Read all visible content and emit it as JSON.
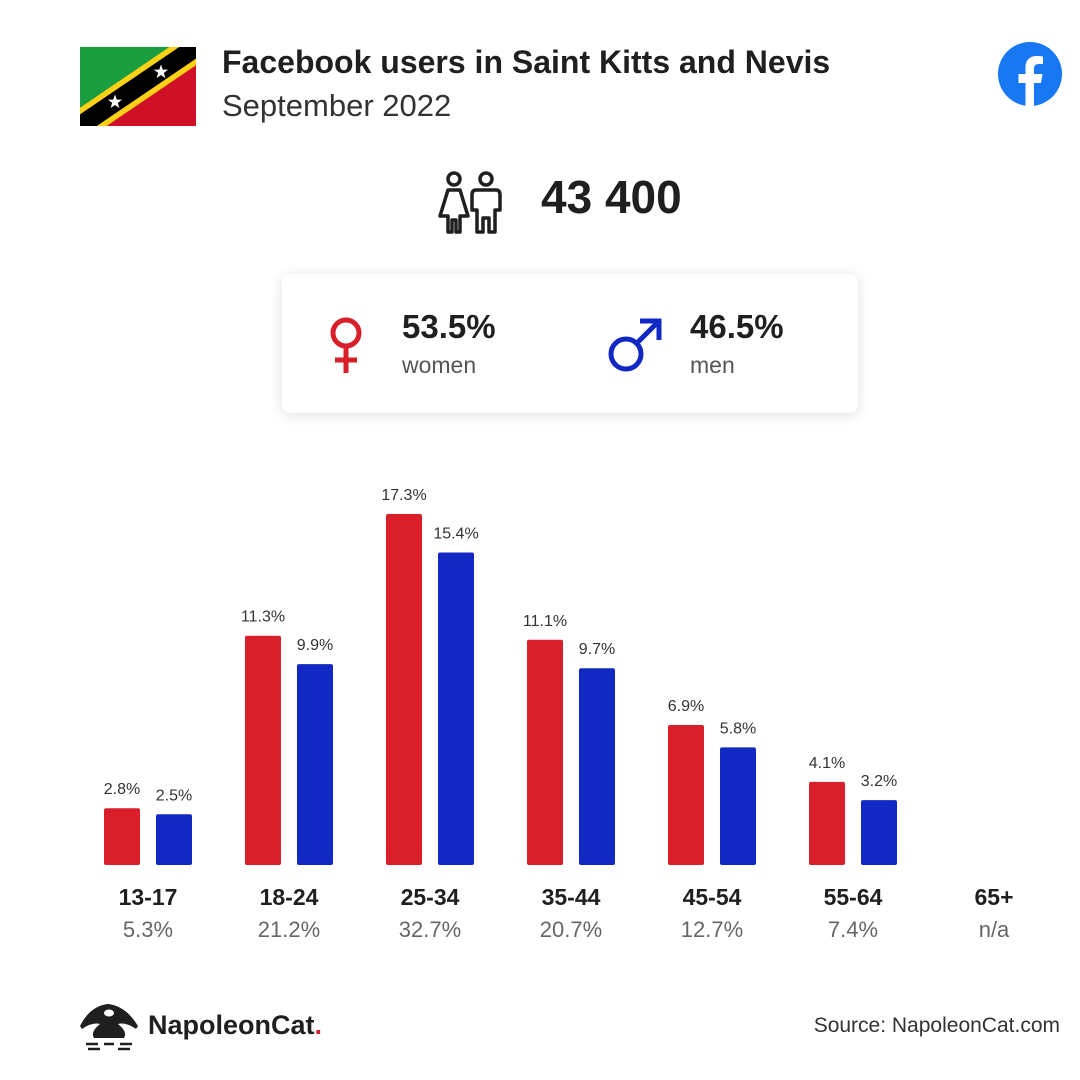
{
  "header": {
    "title": "Facebook users in Saint Kitts and Nevis",
    "subtitle": "September 2022"
  },
  "summary": {
    "total_users": "43 400",
    "women_percent": "53.5%",
    "women_label": "women",
    "men_percent": "46.5%",
    "men_label": "men"
  },
  "colors": {
    "women": "#d91f2a",
    "men": "#1129c2",
    "facebook": "#1877f2"
  },
  "chart_data": {
    "type": "bar",
    "categories": [
      "13-17",
      "18-24",
      "25-34",
      "35-44",
      "45-54",
      "55-64",
      "65+"
    ],
    "category_totals": [
      "5.3%",
      "21.2%",
      "32.7%",
      "20.7%",
      "12.7%",
      "7.4%",
      "n/a"
    ],
    "series": [
      {
        "name": "women",
        "values": [
          2.8,
          11.3,
          17.3,
          11.1,
          6.9,
          4.1,
          null
        ],
        "labels": [
          "2.8%",
          "11.3%",
          "17.3%",
          "11.1%",
          "6.9%",
          "4.1%",
          ""
        ]
      },
      {
        "name": "men",
        "values": [
          2.5,
          9.9,
          15.4,
          9.7,
          5.8,
          3.2,
          null
        ],
        "labels": [
          "2.5%",
          "9.9%",
          "15.4%",
          "9.7%",
          "5.8%",
          "3.2%",
          ""
        ]
      }
    ],
    "ylim": [
      0,
      17.3
    ],
    "grid": false
  },
  "footer": {
    "brand_name": "NapoleonCat",
    "brand_dot": ".",
    "source": "Source: NapoleonCat.com"
  }
}
